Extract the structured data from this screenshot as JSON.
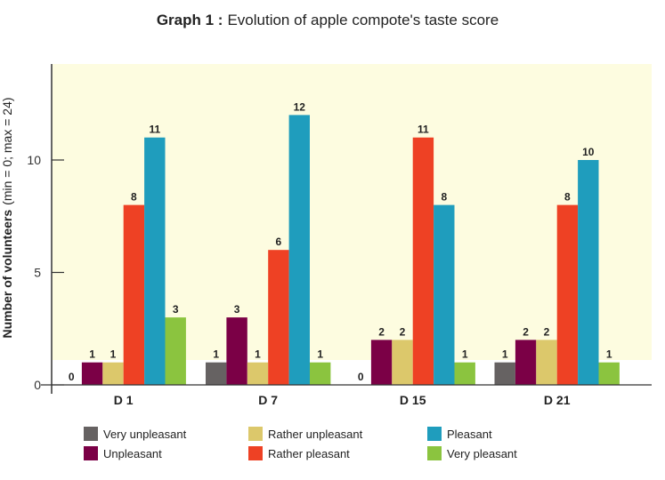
{
  "chart_data": {
    "type": "bar",
    "title_bold": "Graph 1 :",
    "title": "Evolution of apple compote's taste score",
    "ylabel_bold": "Number of volunteers",
    "ylabel_note": "(min = 0; max = 24)",
    "xlabel": "",
    "categories": [
      "D 1",
      "D 7",
      "D 15",
      "D 21"
    ],
    "yticks": [
      0,
      5,
      10
    ],
    "ylim": [
      0,
      14.3
    ],
    "grid": false,
    "legend_position": "bottom",
    "background_color": "#fdfce0",
    "series": [
      {
        "name": "Very unpleasant",
        "color": "#666262",
        "values": [
          0,
          1,
          0,
          1
        ]
      },
      {
        "name": "Unpleasant",
        "color": "#7b0046",
        "values": [
          1,
          3,
          2,
          2
        ]
      },
      {
        "name": "Rather unpleasant",
        "color": "#dcc86b",
        "values": [
          1,
          1,
          2,
          2
        ]
      },
      {
        "name": "Rather pleasant",
        "color": "#ee4124",
        "values": [
          8,
          6,
          11,
          8
        ]
      },
      {
        "name": "Pleasant",
        "color": "#1f9dbd",
        "values": [
          11,
          12,
          8,
          10
        ]
      },
      {
        "name": "Very pleasant",
        "color": "#8bc43f",
        "values": [
          3,
          1,
          1,
          1
        ]
      }
    ]
  }
}
